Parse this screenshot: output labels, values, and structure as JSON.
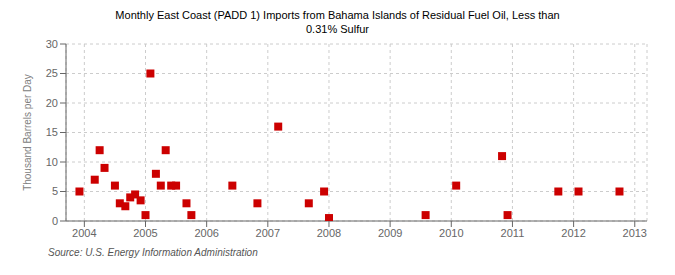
{
  "chart_data": {
    "type": "scatter",
    "title": "Monthly East Coast (PADD 1) Imports from Bahama Islands of Residual Fuel Oil, Less than\n0.31% Sulfur",
    "ylabel": "Thousand Barrels per Day",
    "annotations": [
      "Source: U.S. Energy Information Administration"
    ],
    "x": [
      2003.92,
      2004.17,
      2004.25,
      2004.33,
      2004.5,
      2004.58,
      2004.67,
      2004.75,
      2004.83,
      2004.92,
      2005.0,
      2005.08,
      2005.17,
      2005.25,
      2005.33,
      2005.42,
      2005.5,
      2005.67,
      2005.75,
      2006.42,
      2006.83,
      2007.17,
      2007.67,
      2007.92,
      2008.0,
      2009.58,
      2010.08,
      2010.83,
      2010.92,
      2011.75,
      2012.08,
      2012.75
    ],
    "values": [
      5.0,
      7.0,
      12.0,
      9.0,
      6.0,
      3.0,
      2.5,
      4.0,
      4.5,
      3.5,
      1.0,
      25.0,
      8.0,
      6.0,
      12.0,
      6.0,
      6.0,
      3.0,
      1.0,
      6.0,
      3.0,
      16.0,
      3.0,
      5.0,
      0.5,
      1.0,
      6.0,
      11.0,
      1.0,
      5.0,
      5.0,
      5.0
    ],
    "color": "#cc0000",
    "marker": "square",
    "xlim": [
      2003.7,
      2013.2
    ],
    "ylim": [
      0,
      30
    ],
    "xticks": [
      2004,
      2005,
      2006,
      2007,
      2008,
      2009,
      2010,
      2011,
      2012,
      2013
    ],
    "yticks": [
      0,
      5,
      10,
      15,
      20,
      25,
      30
    ],
    "grid": true
  }
}
